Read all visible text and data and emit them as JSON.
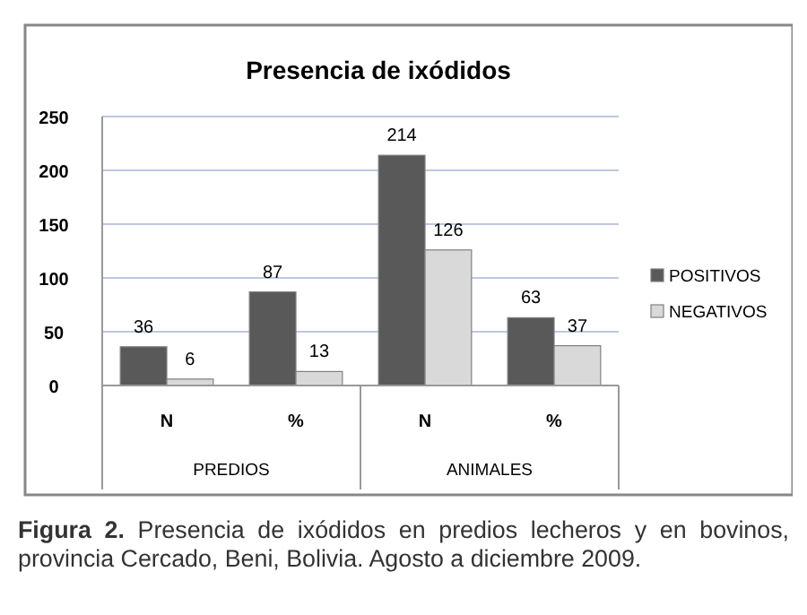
{
  "chart_data": {
    "type": "bar",
    "title": "Presencia de ixódidos",
    "categories": [
      "N",
      "%",
      "N",
      "%"
    ],
    "series": [
      {
        "name": "POSITIVOS",
        "color": "#595959",
        "values": [
          36,
          87,
          214,
          63
        ]
      },
      {
        "name": "NEGATIVOS",
        "color": "#d9d9d9",
        "values": [
          6,
          13,
          126,
          37
        ]
      }
    ],
    "ylim": [
      0,
      250
    ],
    "yticks": [
      0,
      50,
      100,
      150,
      200,
      250
    ],
    "grid": "y",
    "legend": "right",
    "data_labels": true,
    "annotations": [
      "PREDIOS",
      "ANIMALES",
      "Figura 2. Presencia de ixódidos en predios lecheros y en bovinos, provincia Cercado, Beni, Bolivia. Agosto a diciembre 2009."
    ]
  }
}
